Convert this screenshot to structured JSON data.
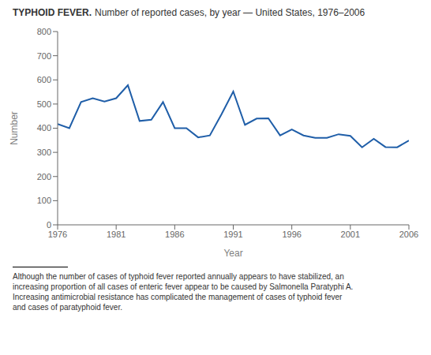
{
  "chart_data": {
    "type": "line",
    "title": "TYPHOID FEVER.",
    "subtitle": "Number of reported cases, by year — United States, 1976–2006",
    "xlabel": "Year",
    "ylabel": "Number",
    "x": [
      1976,
      1977,
      1978,
      1979,
      1980,
      1981,
      1982,
      1983,
      1984,
      1985,
      1986,
      1987,
      1988,
      1989,
      1990,
      1991,
      1992,
      1993,
      1994,
      1995,
      1996,
      1997,
      1998,
      1999,
      2000,
      2001,
      2002,
      2003,
      2004,
      2005,
      2006
    ],
    "values": [
      417,
      400,
      508,
      524,
      510,
      524,
      578,
      430,
      435,
      508,
      400,
      400,
      362,
      370,
      458,
      552,
      414,
      440,
      441,
      370,
      395,
      370,
      360,
      360,
      375,
      368,
      321,
      356,
      322,
      321,
      349
    ],
    "color": "#1f5ea8",
    "xlim": [
      1976,
      2006
    ],
    "ylim": [
      0,
      800
    ],
    "xticks": [
      1976,
      1981,
      1986,
      1991,
      1996,
      2001,
      2006
    ],
    "yticks": [
      0,
      100,
      200,
      300,
      400,
      500,
      600,
      700,
      800
    ],
    "grid": false,
    "annotations": [
      "Although the number of cases of typhoid fever reported annually appears to have stabilized, an",
      "increasing proportion of all cases of enteric fever appear to be caused by Salmonella Paratyphi A.",
      "Increasing antimicrobial resistance has complicated the management of cases of typhoid fever",
      "and cases of paratyphoid fever."
    ]
  }
}
